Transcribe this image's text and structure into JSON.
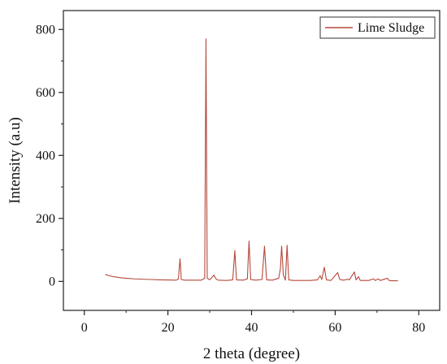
{
  "chart_data": {
    "type": "line",
    "title": "",
    "xlabel": "2 theta (degree)",
    "ylabel": "Intensity (a.u)",
    "xlim": [
      -5,
      85
    ],
    "ylim": [
      -92,
      860
    ],
    "x_ticks": [
      0,
      20,
      40,
      60,
      80
    ],
    "y_ticks": [
      0,
      200,
      400,
      600,
      800
    ],
    "grid": false,
    "legend_position": "top-right",
    "series": [
      {
        "name": "Lime Sludge",
        "color": "#b5483a",
        "points": [
          [
            5,
            22
          ],
          [
            6,
            18
          ],
          [
            7,
            15
          ],
          [
            8,
            13
          ],
          [
            9,
            11
          ],
          [
            10,
            10
          ],
          [
            12,
            8
          ],
          [
            14,
            7
          ],
          [
            16,
            6
          ],
          [
            18,
            5
          ],
          [
            20,
            4.5
          ],
          [
            22,
            4
          ],
          [
            22.5,
            8
          ],
          [
            22.9,
            72
          ],
          [
            23.2,
            6
          ],
          [
            24,
            4
          ],
          [
            26,
            4
          ],
          [
            28,
            4
          ],
          [
            28.8,
            10
          ],
          [
            29.1,
            770
          ],
          [
            29.4,
            10
          ],
          [
            30,
            5
          ],
          [
            31,
            20
          ],
          [
            31.5,
            8
          ],
          [
            32,
            4
          ],
          [
            34,
            3
          ],
          [
            35.5,
            5
          ],
          [
            36,
            98
          ],
          [
            36.4,
            5
          ],
          [
            38,
            4
          ],
          [
            39,
            8
          ],
          [
            39.4,
            128
          ],
          [
            39.8,
            6
          ],
          [
            41,
            4
          ],
          [
            42.5,
            6
          ],
          [
            43.1,
            112
          ],
          [
            43.6,
            5
          ],
          [
            45,
            4
          ],
          [
            46.5,
            10
          ],
          [
            46.9,
            40
          ],
          [
            47.2,
            112
          ],
          [
            47.6,
            20
          ],
          [
            48.1,
            4
          ],
          [
            48.5,
            115
          ],
          [
            48.9,
            5
          ],
          [
            50,
            3
          ],
          [
            52,
            3
          ],
          [
            54,
            3
          ],
          [
            55.8,
            5
          ],
          [
            56.4,
            18
          ],
          [
            56.8,
            6
          ],
          [
            57.4,
            45
          ],
          [
            57.9,
            5
          ],
          [
            59,
            3
          ],
          [
            60.6,
            28
          ],
          [
            61.1,
            6
          ],
          [
            62,
            4
          ],
          [
            63,
            7
          ],
          [
            63.4,
            5
          ],
          [
            64.6,
            30
          ],
          [
            65,
            5
          ],
          [
            65.6,
            15
          ],
          [
            66,
            3
          ],
          [
            67,
            3
          ],
          [
            68,
            3
          ],
          [
            69.2,
            8
          ],
          [
            69.6,
            3
          ],
          [
            70.3,
            8
          ],
          [
            70.8,
            3
          ],
          [
            72.5,
            10
          ],
          [
            72.9,
            3
          ],
          [
            73.5,
            2
          ],
          [
            75,
            2
          ]
        ]
      }
    ]
  }
}
